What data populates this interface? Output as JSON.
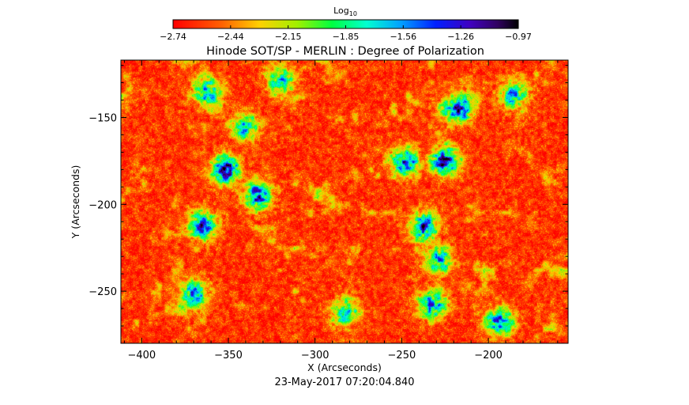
{
  "chart_data": {
    "type": "heatmap",
    "title": "Hinode SOT/SP - MERLIN : Degree of Polarization",
    "xlabel": "X (Arcseconds)",
    "ylabel": "Y (Arcseconds)",
    "timestamp": "23-May-2017 07:20:04.840",
    "xlim": [
      -412,
      -154
    ],
    "ylim": [
      -280,
      -117
    ],
    "x_ticks": [
      -400,
      -350,
      -300,
      -250,
      -200
    ],
    "y_ticks": [
      -150,
      -200,
      -250
    ],
    "colorbar": {
      "title_main": "Log",
      "title_sub": "10",
      "range": [
        -2.74,
        -0.97
      ],
      "tick_labels": [
        "-2.74",
        "-2.44",
        "-2.15",
        "-1.85",
        "-1.56",
        "-1.26",
        "-0.97"
      ],
      "colormap": "rainbow (red to black)"
    },
    "strong_field_regions": [
      {
        "x": -352,
        "y": -180,
        "value": -1.1
      },
      {
        "x": -333,
        "y": -195,
        "value": -1.3
      },
      {
        "x": -365,
        "y": -212,
        "value": -1.4
      },
      {
        "x": -363,
        "y": -135,
        "value": -1.6
      },
      {
        "x": -340,
        "y": -155,
        "value": -1.7
      },
      {
        "x": -225,
        "y": -175,
        "value": -1.05
      },
      {
        "x": -218,
        "y": -145,
        "value": -1.15
      },
      {
        "x": -248,
        "y": -176,
        "value": -1.3
      },
      {
        "x": -237,
        "y": -213,
        "value": -1.4
      },
      {
        "x": -228,
        "y": -232,
        "value": -1.6
      },
      {
        "x": -232,
        "y": -258,
        "value": -1.5
      },
      {
        "x": -370,
        "y": -252,
        "value": -1.5
      },
      {
        "x": -193,
        "y": -268,
        "value": -1.5
      },
      {
        "x": -282,
        "y": -262,
        "value": -1.7
      },
      {
        "x": -185,
        "y": -137,
        "value": -1.6
      },
      {
        "x": -320,
        "y": -128,
        "value": -1.7
      }
    ]
  }
}
